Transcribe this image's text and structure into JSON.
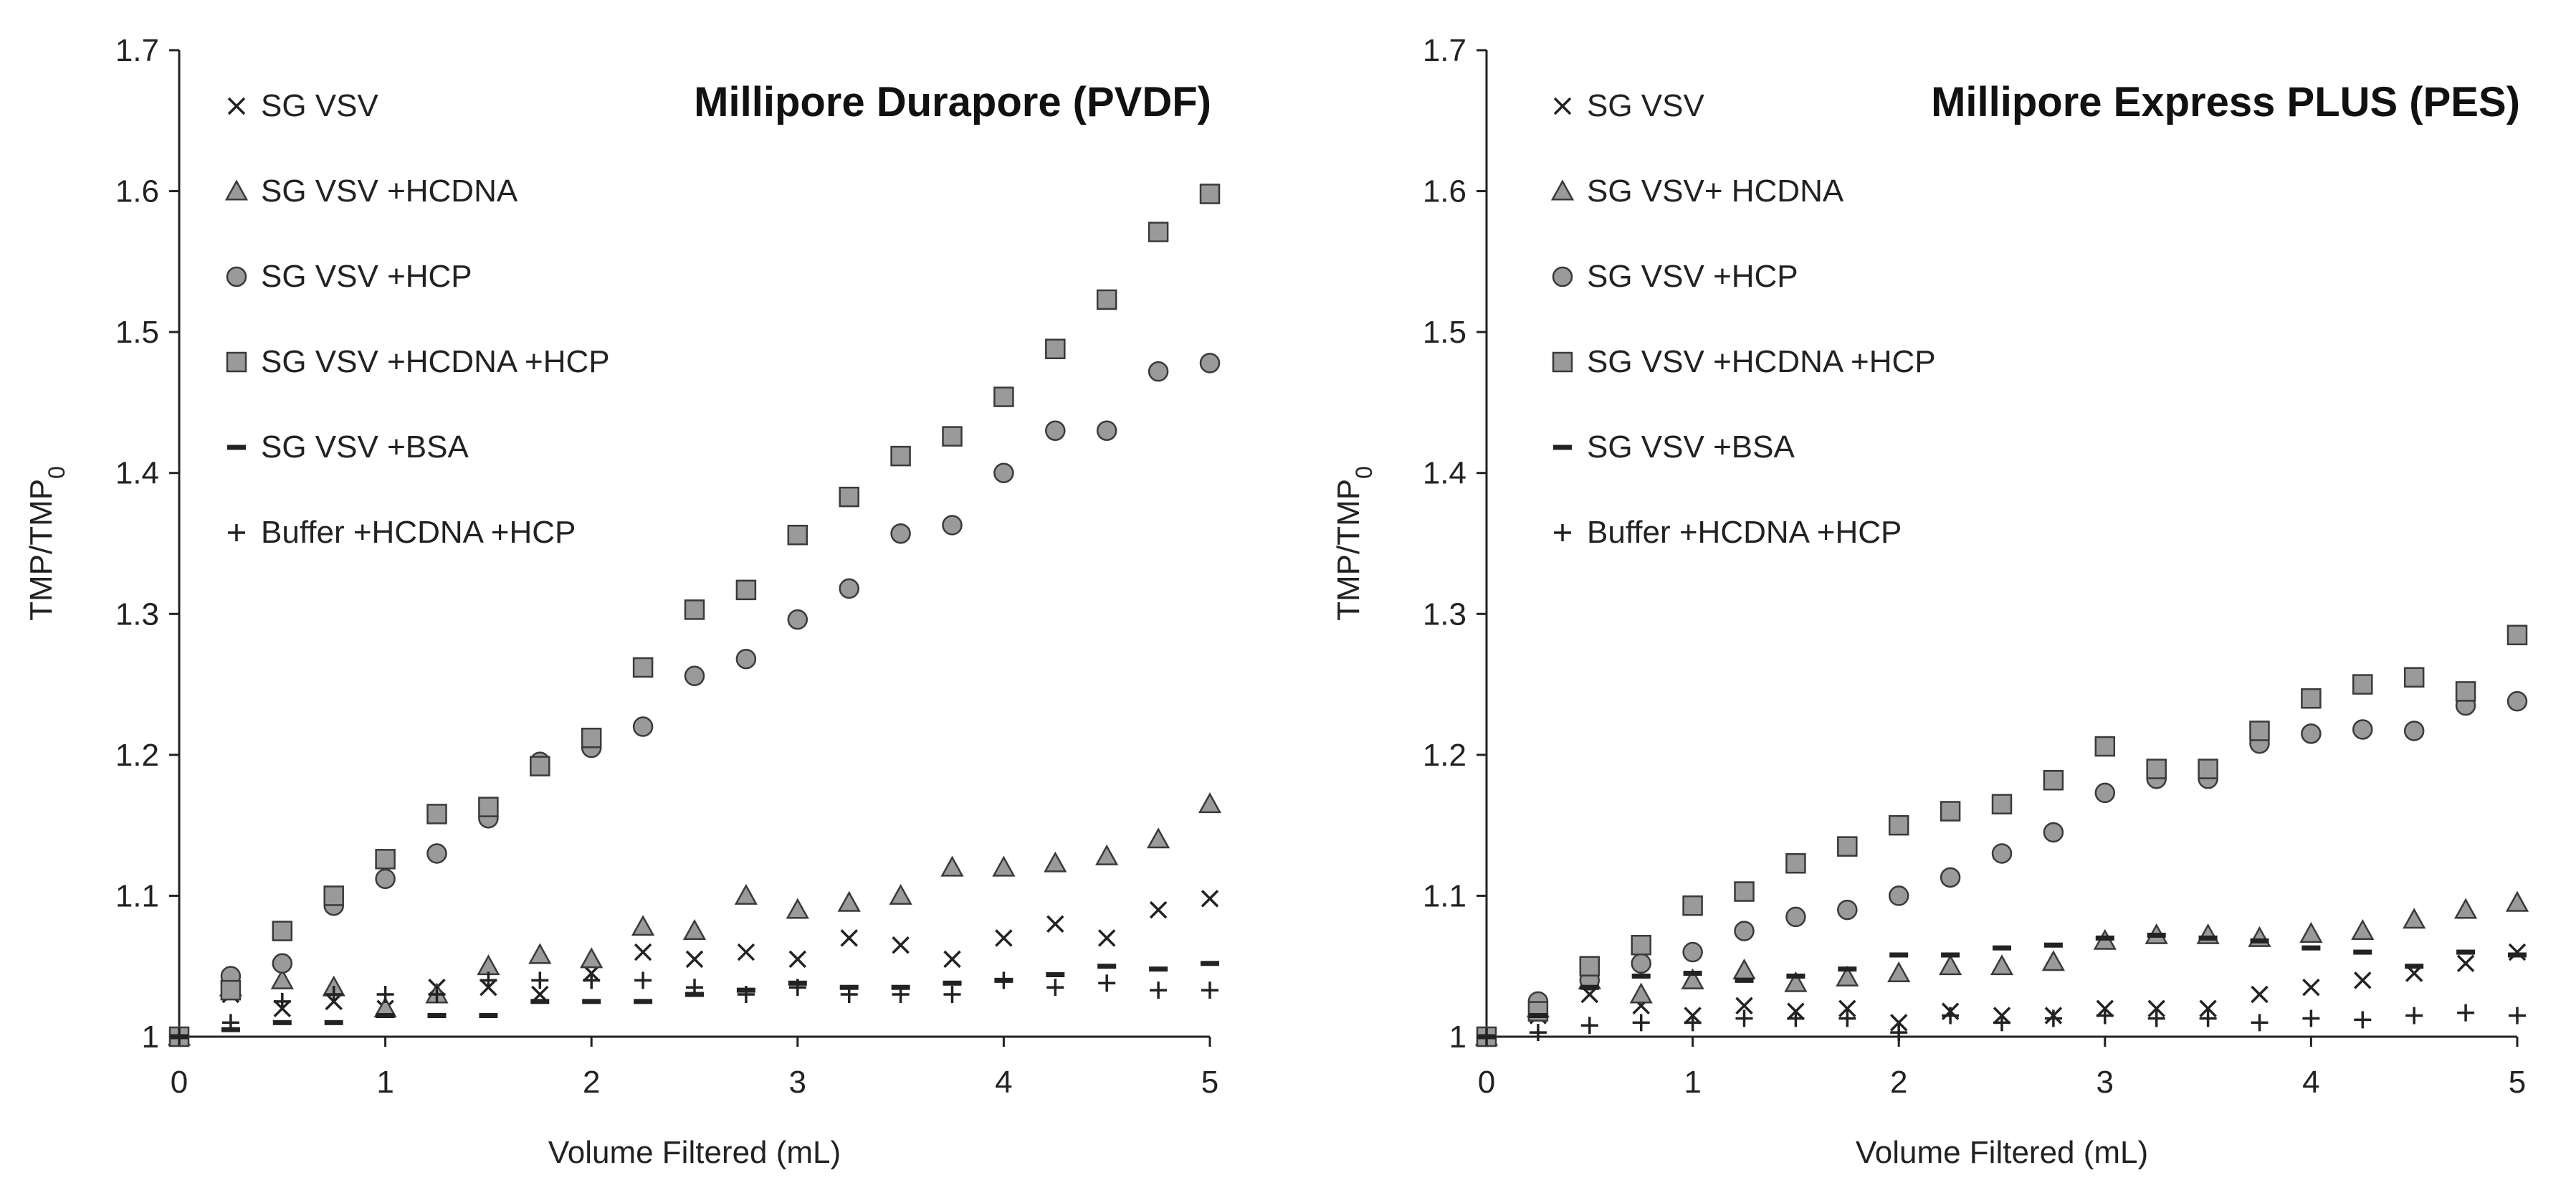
{
  "chart_data": [
    {
      "type": "scatter",
      "title": "Millipore Durapore (PVDF)",
      "xlabel": "Volume Filtered (mL)",
      "ylabel_main": "TMP/TMP",
      "ylabel_sub": "0",
      "xlim": [
        0,
        5
      ],
      "ylim": [
        1,
        1.7
      ],
      "xticks": [
        "0",
        "1",
        "2",
        "3",
        "4",
        "5"
      ],
      "yticks": [
        "1",
        "1.1",
        "1.2",
        "1.3",
        "1.4",
        "1.5",
        "1.6",
        "1.7"
      ],
      "grid": false,
      "legend_position": "top-left",
      "x": [
        0,
        0.25,
        0.5,
        0.75,
        1,
        1.25,
        1.5,
        1.75,
        2,
        2.25,
        2.5,
        2.75,
        3,
        3.25,
        3.5,
        3.75,
        4,
        4.25,
        4.5,
        4.75,
        5
      ],
      "series": [
        {
          "name": "SG VSV",
          "marker": "x",
          "values": [
            1.0,
            1.03,
            1.02,
            1.025,
            1.02,
            1.035,
            1.035,
            1.03,
            1.045,
            1.06,
            1.055,
            1.06,
            1.055,
            1.07,
            1.065,
            1.055,
            1.07,
            1.08,
            1.07,
            1.09,
            1.098
          ]
        },
        {
          "name": "SG VSV +HCDNA",
          "marker": "triangle",
          "values": [
            1.0,
            1.035,
            1.04,
            1.035,
            1.02,
            1.03,
            1.05,
            1.058,
            1.055,
            1.078,
            1.075,
            1.1,
            1.09,
            1.095,
            1.1,
            1.12,
            1.12,
            1.123,
            1.128,
            1.14,
            1.165
          ]
        },
        {
          "name": "SG VSV +HCP",
          "marker": "circle",
          "values": [
            1.0,
            1.043,
            1.052,
            1.093,
            1.112,
            1.13,
            1.155,
            1.195,
            1.205,
            1.22,
            1.256,
            1.268,
            1.296,
            1.318,
            1.357,
            1.363,
            1.4,
            1.43,
            1.43,
            1.472,
            1.478
          ]
        },
        {
          "name": "SG VSV +HCDNA +HCP",
          "marker": "square",
          "values": [
            1.0,
            1.033,
            1.075,
            1.1,
            1.126,
            1.158,
            1.163,
            1.192,
            1.212,
            1.262,
            1.303,
            1.317,
            1.356,
            1.383,
            1.412,
            1.426,
            1.454,
            1.488,
            1.523,
            1.571,
            1.598
          ]
        },
        {
          "name": "SG VSV +BSA",
          "marker": "dash",
          "values": [
            1.0,
            1.005,
            1.01,
            1.01,
            1.015,
            1.015,
            1.015,
            1.025,
            1.025,
            1.025,
            1.03,
            1.033,
            1.038,
            1.035,
            1.035,
            1.038,
            1.04,
            1.044,
            1.05,
            1.048,
            1.052
          ]
        },
        {
          "name": "Buffer +HCDNA +HCP",
          "marker": "plus",
          "values": [
            1.0,
            1.01,
            1.025,
            1.03,
            1.03,
            1.03,
            1.04,
            1.04,
            1.04,
            1.04,
            1.035,
            1.03,
            1.035,
            1.03,
            1.03,
            1.03,
            1.04,
            1.035,
            1.038,
            1.033,
            1.033
          ]
        }
      ]
    },
    {
      "type": "scatter",
      "title": "Millipore Express PLUS (PES)",
      "xlabel": "Volume Filtered (mL)",
      "ylabel_main": "TMP/TMP",
      "ylabel_sub": "0",
      "xlim": [
        0,
        5
      ],
      "ylim": [
        1,
        1.7
      ],
      "xticks": [
        "0",
        "1",
        "2",
        "3",
        "4",
        "5"
      ],
      "yticks": [
        "1",
        "1.1",
        "1.2",
        "1.3",
        "1.4",
        "1.5",
        "1.6",
        "1.7"
      ],
      "grid": false,
      "legend_position": "top-left",
      "x": [
        0,
        0.25,
        0.5,
        0.75,
        1,
        1.25,
        1.5,
        1.75,
        2,
        2.25,
        2.5,
        2.75,
        3,
        3.25,
        3.5,
        3.75,
        4,
        4.25,
        4.5,
        4.75,
        5
      ],
      "series": [
        {
          "name": "SG VSV",
          "marker": "x",
          "values": [
            1.0,
            1.015,
            1.03,
            1.022,
            1.015,
            1.022,
            1.018,
            1.02,
            1.01,
            1.018,
            1.015,
            1.015,
            1.02,
            1.02,
            1.02,
            1.03,
            1.035,
            1.04,
            1.045,
            1.052,
            1.06
          ]
        },
        {
          "name": "SG VSV+ HCDNA",
          "marker": "triangle",
          "values": [
            1.0,
            1.02,
            1.04,
            1.03,
            1.04,
            1.047,
            1.038,
            1.042,
            1.045,
            1.05,
            1.05,
            1.053,
            1.068,
            1.072,
            1.072,
            1.07,
            1.073,
            1.075,
            1.083,
            1.09,
            1.095
          ]
        },
        {
          "name": "SG VSV +HCP",
          "marker": "circle",
          "values": [
            1.0,
            1.025,
            1.04,
            1.052,
            1.06,
            1.075,
            1.085,
            1.09,
            1.1,
            1.113,
            1.13,
            1.145,
            1.173,
            1.183,
            1.183,
            1.208,
            1.215,
            1.218,
            1.217,
            1.235,
            1.238
          ]
        },
        {
          "name": "SG VSV +HCDNA +HCP",
          "marker": "square",
          "values": [
            1.0,
            1.018,
            1.05,
            1.065,
            1.093,
            1.103,
            1.123,
            1.135,
            1.15,
            1.16,
            1.165,
            1.182,
            1.206,
            1.19,
            1.19,
            1.217,
            1.24,
            1.25,
            1.255,
            1.245,
            1.285
          ]
        },
        {
          "name": "SG VSV +BSA",
          "marker": "dash",
          "values": [
            1.0,
            1.015,
            1.035,
            1.043,
            1.045,
            1.04,
            1.043,
            1.048,
            1.058,
            1.058,
            1.063,
            1.065,
            1.07,
            1.072,
            1.07,
            1.068,
            1.063,
            1.06,
            1.05,
            1.06,
            1.058
          ]
        },
        {
          "name": "Buffer +HCDNA +HCP",
          "marker": "plus",
          "values": [
            1.0,
            1.003,
            1.008,
            1.01,
            1.01,
            1.013,
            1.013,
            1.013,
            1.003,
            1.015,
            1.01,
            1.013,
            1.015,
            1.013,
            1.013,
            1.01,
            1.013,
            1.012,
            1.015,
            1.017,
            1.015
          ]
        }
      ]
    }
  ],
  "colors": {
    "marker_fill": "#9a9a9a",
    "marker_stroke": "#3a3a3a",
    "ink": "#222222"
  }
}
